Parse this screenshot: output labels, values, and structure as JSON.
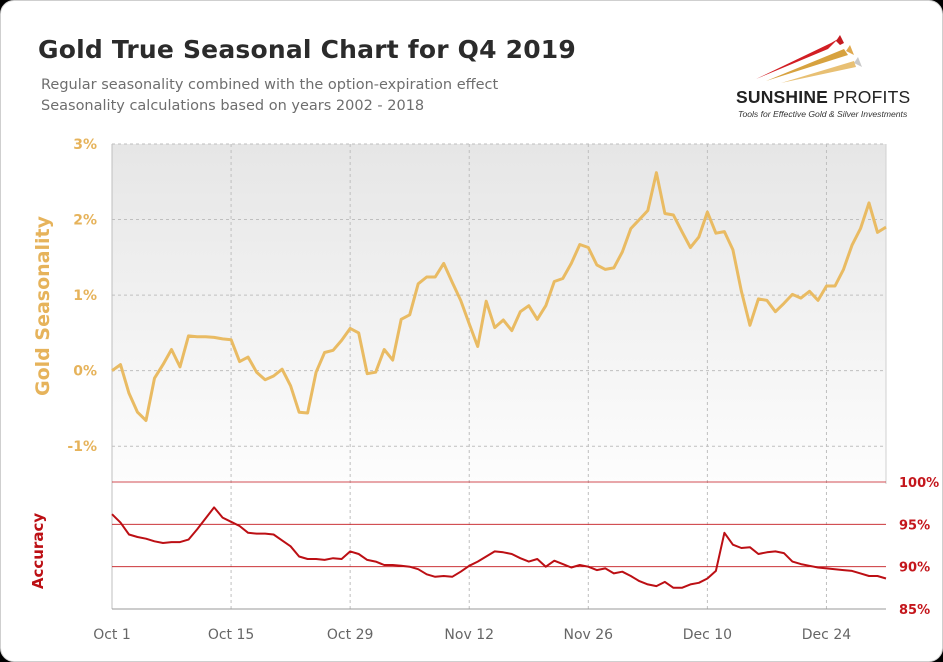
{
  "header": {
    "title": "Gold True Seasonal Chart for Q4 2019",
    "subtitle_1": "Regular seasonality combined with the option-expiration effect",
    "subtitle_2": "Seasonality calculations based on years 2002 - 2018"
  },
  "logo": {
    "name_bold": "SUNSHINE",
    "name_light": " PROFITS",
    "tagline": "Tools for Effective Gold & Silver Investments"
  },
  "colors": {
    "gold": "#e9bb63",
    "gold_text": "#e6b35b",
    "accuracy": "#bc0f14",
    "axis_red": "#c4161c",
    "grid": "#bfbfbf"
  },
  "chart_data": [
    {
      "type": "line",
      "ylabel": "Gold Seasonality",
      "ylim": [
        -1.5,
        3
      ],
      "yticks": [
        "3%",
        "2%",
        "1%",
        "0%",
        "-1%"
      ],
      "ytick_values": [
        3,
        2,
        1,
        0,
        -1
      ],
      "grid": true,
      "series": [
        {
          "values": [
            0.0,
            0.08,
            -0.3,
            -0.55,
            -0.66,
            -0.1,
            0.08,
            0.28,
            0.05,
            0.46,
            0.45,
            0.45,
            0.44,
            0.42,
            0.41,
            0.12,
            0.18,
            -0.02,
            -0.12,
            -0.07,
            0.02,
            -0.2,
            -0.55,
            -0.56,
            -0.02,
            0.24,
            0.27,
            0.4,
            0.56,
            0.5,
            -0.04,
            -0.02,
            0.28,
            0.14,
            0.68,
            0.74,
            1.15,
            1.24,
            1.24,
            1.42,
            1.17,
            0.93,
            0.62,
            0.32,
            0.92,
            0.57,
            0.67,
            0.53,
            0.78,
            0.86,
            0.68,
            0.86,
            1.18,
            1.22,
            1.42,
            1.67,
            1.63,
            1.4,
            1.34,
            1.36,
            1.57,
            1.88,
            2.0,
            2.12,
            2.62,
            2.08,
            2.06,
            1.84,
            1.63,
            1.77,
            2.1,
            1.82,
            1.84,
            1.6,
            1.05,
            0.6,
            0.95,
            0.93,
            0.78,
            0.89,
            1.01,
            0.96,
            1.05,
            0.93,
            1.12,
            1.12,
            1.34,
            1.66,
            1.88,
            2.22,
            1.83,
            1.9
          ]
        }
      ]
    },
    {
      "type": "line",
      "ylabel": "Accuracy",
      "ylim": [
        85,
        100
      ],
      "yticks": [
        "100%",
        "95%",
        "90%",
        "85%"
      ],
      "ytick_values": [
        100,
        95,
        90,
        85
      ],
      "grid": true,
      "series": [
        {
          "values": [
            96.2,
            95.2,
            93.8,
            93.5,
            93.3,
            93.0,
            92.8,
            92.9,
            92.9,
            93.2,
            94.4,
            95.7,
            97.0,
            95.8,
            95.3,
            94.8,
            94.0,
            93.9,
            93.9,
            93.8,
            93.1,
            92.4,
            91.2,
            90.9,
            90.9,
            90.8,
            91.0,
            90.9,
            91.8,
            91.5,
            90.8,
            90.6,
            90.2,
            90.2,
            90.1,
            90.0,
            89.7,
            89.1,
            88.8,
            88.9,
            88.8,
            89.4,
            90.1,
            90.6,
            91.2,
            91.8,
            91.7,
            91.5,
            91.0,
            90.6,
            90.9,
            90.0,
            90.7,
            90.3,
            89.9,
            90.2,
            90.0,
            89.6,
            89.8,
            89.2,
            89.4,
            88.9,
            88.3,
            87.9,
            87.7,
            88.2,
            87.5,
            87.5,
            87.9,
            88.1,
            88.6,
            89.5,
            94.0,
            92.6,
            92.2,
            92.3,
            91.5,
            91.7,
            91.8,
            91.6,
            90.6,
            90.3,
            90.1,
            89.9,
            89.8,
            89.7,
            89.6,
            89.5,
            89.2,
            88.9,
            88.9,
            88.6
          ]
        }
      ],
      "x_labels": [
        "Oct 1",
        "Oct 15",
        "Oct 29",
        "Nov 12",
        "Nov 26",
        "Dec 10",
        "Dec 24"
      ]
    }
  ]
}
